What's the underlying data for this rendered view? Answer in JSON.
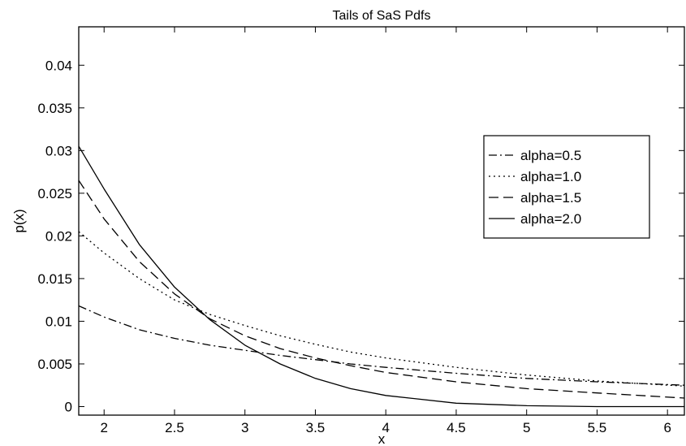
{
  "chart_data": {
    "type": "line",
    "title": "Tails of SaS Pdfs",
    "xlabel": "x",
    "ylabel": "p(x)",
    "xlim": [
      1.82,
      6.12
    ],
    "ylim": [
      -0.001,
      0.0445
    ],
    "xticks": [
      2,
      2.5,
      3,
      3.5,
      4,
      4.5,
      5,
      5.5,
      6
    ],
    "xtick_labels": [
      "2",
      "2.5",
      "3",
      "3.5",
      "4",
      "4.5",
      "5",
      "5.5",
      "6"
    ],
    "yticks": [
      0,
      0.005,
      0.01,
      0.015,
      0.02,
      0.025,
      0.03,
      0.035,
      0.04
    ],
    "ytick_labels": [
      "0",
      "0.005",
      "0.01",
      "0.015",
      "0.02",
      "0.025",
      "0.03",
      "0.035",
      "0.04"
    ],
    "grid": false,
    "legend_position": "right",
    "series": [
      {
        "name": "alpha=0.5",
        "dash": "dashdot",
        "x": [
          1.82,
          2.0,
          2.25,
          2.5,
          2.75,
          3.0,
          3.25,
          3.5,
          3.75,
          4.0,
          4.5,
          5.0,
          5.5,
          6.12
        ],
        "y": [
          0.0118,
          0.0105,
          0.009,
          0.008,
          0.0072,
          0.0066,
          0.006,
          0.0055,
          0.005,
          0.0046,
          0.0039,
          0.0033,
          0.0029,
          0.0025
        ]
      },
      {
        "name": "alpha=1.0",
        "dash": "dotted",
        "x": [
          1.82,
          2.0,
          2.25,
          2.5,
          2.75,
          3.0,
          3.25,
          3.5,
          3.75,
          4.0,
          4.5,
          5.0,
          5.5,
          6.12
        ],
        "y": [
          0.0205,
          0.018,
          0.015,
          0.0125,
          0.0108,
          0.0095,
          0.0083,
          0.0073,
          0.0064,
          0.0057,
          0.0046,
          0.0037,
          0.003,
          0.0024
        ]
      },
      {
        "name": "alpha=1.5",
        "dash": "dashed",
        "x": [
          1.82,
          2.0,
          2.25,
          2.5,
          2.75,
          3.0,
          3.25,
          3.5,
          3.75,
          4.0,
          4.5,
          5.0,
          5.5,
          6.12
        ],
        "y": [
          0.0265,
          0.022,
          0.017,
          0.0132,
          0.0103,
          0.0083,
          0.0068,
          0.0057,
          0.0048,
          0.004,
          0.0029,
          0.0021,
          0.0016,
          0.001
        ]
      },
      {
        "name": "alpha=2.0",
        "dash": "solid",
        "x": [
          1.82,
          2.0,
          2.25,
          2.5,
          2.75,
          3.0,
          3.25,
          3.5,
          3.75,
          4.0,
          4.5,
          5.0,
          5.5,
          6.12
        ],
        "y": [
          0.0305,
          0.0255,
          0.019,
          0.014,
          0.0102,
          0.0072,
          0.005,
          0.0033,
          0.0021,
          0.0013,
          0.0004,
          0.0001,
          0.0,
          0.0
        ]
      }
    ]
  }
}
